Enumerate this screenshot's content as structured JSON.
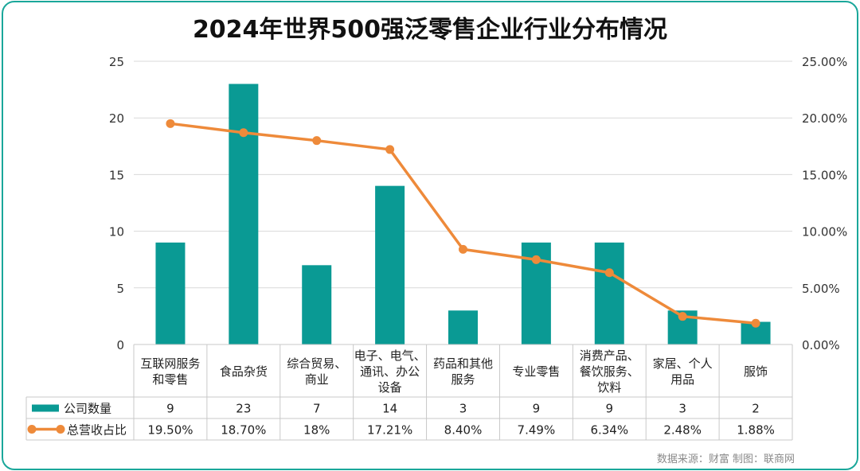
{
  "chart_data": {
    "type": "bar",
    "title": "2024年世界500强泛零售企业行业分布情况",
    "categories": [
      [
        "互联网服务",
        "和零售"
      ],
      [
        "食品杂货"
      ],
      [
        "综合贸易、",
        "商业"
      ],
      [
        "电子、电气、",
        "通讯、办公",
        "设备"
      ],
      [
        "药品和其他",
        "服务"
      ],
      [
        "专业零售"
      ],
      [
        "消费产品、",
        "餐饮服务、",
        "饮料"
      ],
      [
        "家居、个人",
        "用品"
      ],
      [
        "服饰"
      ]
    ],
    "y_left": {
      "ticks": [
        "0",
        "5",
        "10",
        "15",
        "20",
        "25"
      ],
      "min": 0,
      "max": 25
    },
    "y_right": {
      "ticks": [
        "0.00%",
        "5.00%",
        "10.00%",
        "15.00%",
        "20.00%",
        "25.00%"
      ],
      "min": 0,
      "max": 25
    },
    "series": [
      {
        "name": "公司数量",
        "kind": "bar",
        "axis": "left",
        "color": "#0a9a94",
        "values": [
          9,
          23,
          7,
          14,
          3,
          9,
          9,
          3,
          2
        ],
        "labels": [
          "9",
          "23",
          "7",
          "14",
          "3",
          "9",
          "9",
          "3",
          "2"
        ]
      },
      {
        "name": "总营收占比",
        "kind": "line",
        "axis": "right",
        "color": "#ee8a3a",
        "values": [
          19.5,
          18.7,
          18.0,
          17.21,
          8.4,
          7.49,
          6.34,
          2.48,
          1.88
        ],
        "labels": [
          "19.50%",
          "18.70%",
          "18%",
          "17.21%",
          "8.40%",
          "7.49%",
          "6.34%",
          "2.48%",
          "1.88%"
        ]
      }
    ],
    "grid": true,
    "legend": "data-table"
  },
  "footer": {
    "source": "数据来源：财富  制图：联商网"
  }
}
